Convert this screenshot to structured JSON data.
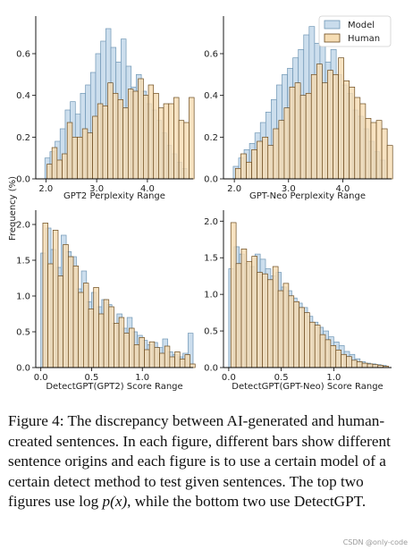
{
  "figure": {
    "ylabel_shared": "Frequency (%)",
    "legend": {
      "placement": "top-right",
      "entries": [
        "Model",
        "Human"
      ]
    },
    "colors": {
      "model": "#c9dcec",
      "model_edge": "#6f96b5",
      "human": "#f6ddb4",
      "human_edge": "#6b4a1d"
    }
  },
  "chart_data": [
    {
      "id": "gpt2-perplexity",
      "type": "bar",
      "xlabel": "GPT2 Perplexity Range",
      "xlim": [
        1.8,
        4.9
      ],
      "ylim": [
        0,
        0.78
      ],
      "xticks": [
        2.0,
        3.0,
        4.0
      ],
      "xtick_labels": [
        "2.0",
        "3.0",
        "4.0"
      ],
      "yticks": [
        0,
        0.2,
        0.4,
        0.6
      ],
      "ytick_labels": [
        "0.0",
        "0.2",
        "0.4",
        "0.6"
      ],
      "bin_width": 0.1,
      "series": [
        {
          "name": "Model",
          "x0": 1.98,
          "values": [
            0.1,
            0.13,
            0.18,
            0.24,
            0.33,
            0.37,
            0.31,
            0.41,
            0.45,
            0.51,
            0.6,
            0.66,
            0.72,
            0.63,
            0.56,
            0.67,
            0.54,
            0.44,
            0.5,
            0.42,
            0.36,
            0.33,
            0.28,
            0.22,
            0.16,
            0.12,
            0.08,
            0.05
          ]
        },
        {
          "name": "Human",
          "x0": 2.02,
          "values": [
            0.07,
            0.15,
            0.09,
            0.12,
            0.27,
            0.2,
            0.2,
            0.24,
            0.22,
            0.3,
            0.36,
            0.35,
            0.46,
            0.41,
            0.38,
            0.34,
            0.43,
            0.42,
            0.48,
            0.4,
            0.45,
            0.41,
            0.34,
            0.36,
            0.36,
            0.39,
            0.28,
            0.27,
            0.39
          ]
        }
      ]
    },
    {
      "id": "gpt-neo-perplexity",
      "type": "bar",
      "xlabel": "GPT-Neo Perplexity Range",
      "xlim": [
        1.8,
        4.9
      ],
      "ylim": [
        0,
        0.78
      ],
      "xticks": [
        2.0,
        3.0,
        4.0
      ],
      "xtick_labels": [
        "2.0",
        "3.0",
        "4.0"
      ],
      "yticks": [
        0,
        0.2,
        0.4,
        0.6
      ],
      "ytick_labels": [
        "0.0",
        "0.2",
        "0.4",
        "0.6"
      ],
      "bin_width": 0.1,
      "series": [
        {
          "name": "Model",
          "x0": 1.98,
          "values": [
            0.06,
            0.1,
            0.14,
            0.17,
            0.22,
            0.27,
            0.32,
            0.38,
            0.45,
            0.5,
            0.53,
            0.58,
            0.62,
            0.69,
            0.73,
            0.65,
            0.7,
            0.56,
            0.62,
            0.5,
            0.45,
            0.41,
            0.33,
            0.3,
            0.24,
            0.18,
            0.13,
            0.09
          ]
        },
        {
          "name": "Human",
          "x0": 2.02,
          "values": [
            0.05,
            0.12,
            0.08,
            0.14,
            0.18,
            0.2,
            0.16,
            0.24,
            0.28,
            0.34,
            0.44,
            0.46,
            0.4,
            0.41,
            0.5,
            0.55,
            0.46,
            0.52,
            0.5,
            0.58,
            0.47,
            0.44,
            0.39,
            0.36,
            0.29,
            0.27,
            0.28,
            0.24,
            0.16
          ]
        }
      ]
    },
    {
      "id": "detectgpt-gpt2",
      "type": "bar",
      "xlabel": "DetectGPT(GPT2) Score Range",
      "xlim": [
        -0.05,
        1.5
      ],
      "ylim": [
        0,
        2.2
      ],
      "xticks": [
        0.0,
        0.5,
        1.0
      ],
      "xtick_labels": [
        "0.0",
        "0.5",
        "1.0"
      ],
      "yticks": [
        0,
        0.5,
        1.0,
        1.5,
        2.0
      ],
      "ytick_labels": [
        "0.0",
        "0.5",
        "1.0",
        "1.5",
        "2.0"
      ],
      "bin_width": 0.05,
      "series": [
        {
          "name": "Model",
          "x0": 0.0,
          "values": [
            1.6,
            1.95,
            1.65,
            1.4,
            1.85,
            1.62,
            1.55,
            1.1,
            1.35,
            0.92,
            1.05,
            0.85,
            0.95,
            0.88,
            0.62,
            0.75,
            0.55,
            0.7,
            0.5,
            0.45,
            0.38,
            0.32,
            0.35,
            0.28,
            0.4,
            0.22,
            0.18,
            0.15,
            0.2,
            0.48
          ]
        },
        {
          "name": "Human",
          "x0": 0.02,
          "values": [
            2.02,
            1.45,
            1.92,
            1.28,
            1.72,
            1.55,
            1.42,
            1.05,
            1.18,
            0.82,
            1.12,
            0.75,
            0.95,
            0.85,
            0.62,
            0.7,
            0.48,
            0.55,
            0.32,
            0.42,
            0.25,
            0.36,
            0.28,
            0.2,
            0.3,
            0.15,
            0.22,
            0.12,
            0.18,
            0.05
          ]
        }
      ]
    },
    {
      "id": "detectgpt-gpt-neo",
      "type": "bar",
      "xlabel": "DetectGPT(GPT-Neo) Score Range",
      "xlim": [
        -0.05,
        1.55
      ],
      "ylim": [
        0,
        2.15
      ],
      "xticks": [
        0.0,
        0.5,
        1.0
      ],
      "xtick_labels": [
        "0.0",
        "0.5",
        "1.0"
      ],
      "yticks": [
        0,
        0.5,
        1.0,
        1.5,
        2.0
      ],
      "ytick_labels": [
        "0.0",
        "0.5",
        "1.0",
        "1.5",
        "2.0"
      ],
      "bin_width": 0.05,
      "series": [
        {
          "name": "Model",
          "x0": 0.0,
          "values": [
            1.35,
            1.65,
            1.55,
            1.42,
            1.38,
            1.55,
            1.48,
            1.35,
            1.25,
            1.3,
            1.1,
            1.05,
            0.95,
            0.88,
            0.82,
            0.7,
            0.62,
            0.55,
            0.5,
            0.42,
            0.35,
            0.3,
            0.22,
            0.18,
            0.12,
            0.08,
            0.06,
            0.05,
            0.04,
            0.03
          ]
        },
        {
          "name": "Human",
          "x0": 0.02,
          "values": [
            1.98,
            1.42,
            1.62,
            1.45,
            1.52,
            1.3,
            1.28,
            1.2,
            1.38,
            1.05,
            1.15,
            0.98,
            0.9,
            0.82,
            0.75,
            0.62,
            0.58,
            0.45,
            0.38,
            0.3,
            0.24,
            0.18,
            0.15,
            0.1,
            0.08,
            0.06,
            0.05,
            0.04,
            0.03,
            0.02
          ]
        }
      ]
    }
  ],
  "caption": {
    "label": "Figure 4:",
    "text_before_math": " The discrepancy between AI-generated and human-created sentences. In each figure, different bars show different sentence origins and each figure is to use a certain model of a certain detect method to test given sentences. The top two figures use log ",
    "math": "p(x)",
    "text_after_math": ", while the bottom two use DetectGPT."
  },
  "watermark": "CSDN @only-code"
}
